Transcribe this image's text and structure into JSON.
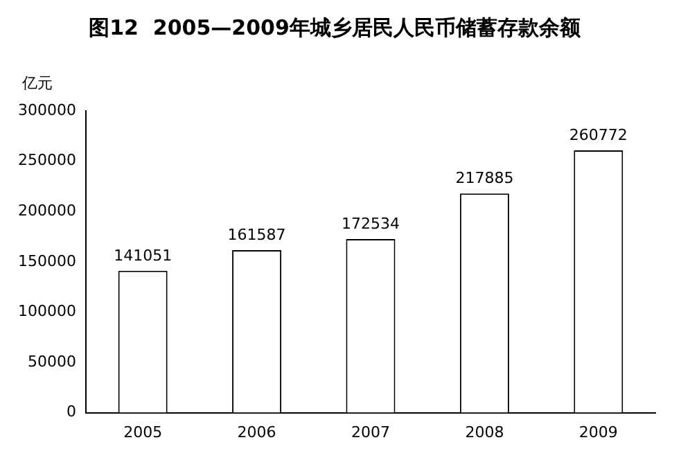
{
  "chart_data": {
    "type": "bar",
    "title": "图12  2005—2009年城乡居民人民币储蓄存款余额",
    "ylabel": "亿元",
    "categories": [
      "2005",
      "2006",
      "2007",
      "2008",
      "2009"
    ],
    "values": [
      141051,
      161587,
      172534,
      217885,
      260772
    ],
    "color": "#ffffff",
    "ylim": [
      0,
      300000
    ],
    "yticks": [
      0,
      50000,
      100000,
      150000,
      200000,
      250000,
      300000
    ],
    "data_labels": true,
    "grid": false,
    "legend": false
  }
}
